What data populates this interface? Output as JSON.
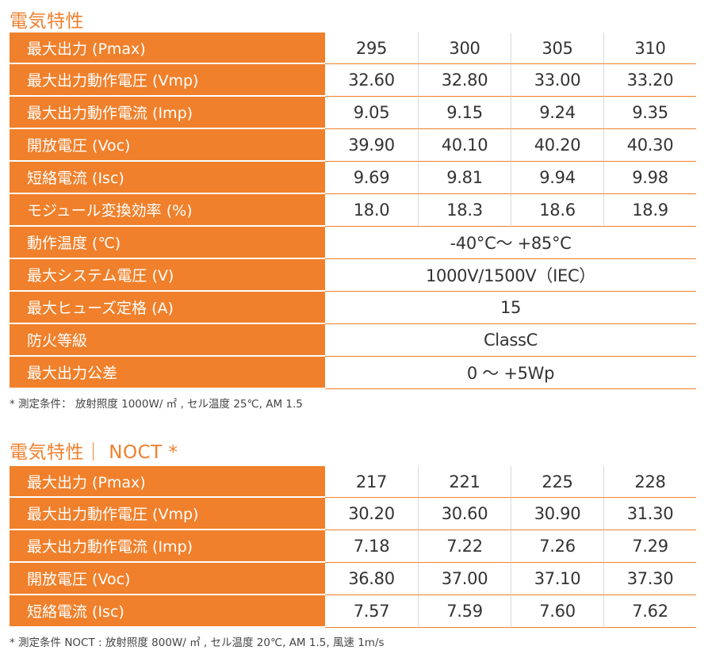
{
  "section1": {
    "title": "電気特性",
    "rows": [
      {
        "label": "最大出力 (Pmax)",
        "values": [
          "295",
          "300",
          "305",
          "310"
        ]
      },
      {
        "label": "最大出力動作電圧 (Vmp)",
        "values": [
          "32.60",
          "32.80",
          "33.00",
          "33.20"
        ]
      },
      {
        "label": "最大出力動作電流 (Imp)",
        "values": [
          "9.05",
          "9.15",
          "9.24",
          "9.35"
        ]
      },
      {
        "label": "開放電圧 (Voc)",
        "values": [
          "39.90",
          "40.10",
          "40.20",
          "40.30"
        ]
      },
      {
        "label": "短絡電流 (Isc)",
        "values": [
          "9.69",
          "9.81",
          "9.94",
          "9.98"
        ]
      },
      {
        "label": "モジュール変換効率 (%)",
        "values": [
          "18.0",
          "18.3",
          "18.6",
          "18.9"
        ]
      }
    ],
    "span_rows": [
      {
        "label": "動作温度 (℃)",
        "value": "-40°C〜 +85°C"
      },
      {
        "label": "最大システム電圧 (V)",
        "value": "1000V/1500V（IEC）"
      },
      {
        "label": "最大ヒューズ定格 (A)",
        "value": "15"
      },
      {
        "label": "防火等級",
        "value": "ClassC"
      },
      {
        "label": "最大出力公差",
        "value": "0 〜 +5Wp"
      }
    ],
    "note": "* 測定条件： 放射照度 1000W/ ㎡ , セル温度 25℃, AM 1.5"
  },
  "section2": {
    "title": "電気特性｜ NOCT *",
    "rows": [
      {
        "label": "最大出力 (Pmax)",
        "values": [
          "217",
          "221",
          "225",
          "228"
        ]
      },
      {
        "label": "最大出力動作電圧 (Vmp)",
        "values": [
          "30.20",
          "30.60",
          "30.90",
          "31.30"
        ]
      },
      {
        "label": "最大出力動作電流 (Imp)",
        "values": [
          "7.18",
          "7.22",
          "7.26",
          "7.29"
        ]
      },
      {
        "label": "開放電圧 (Voc)",
        "values": [
          "36.80",
          "37.00",
          "37.10",
          "37.30"
        ]
      },
      {
        "label": "短絡電流 (Isc)",
        "values": [
          "7.57",
          "7.59",
          "7.60",
          "7.62"
        ]
      }
    ],
    "note": "* 測定条件 NOCT : 放射照度 800W/ ㎡ , セル温度 20℃, AM 1.5, 風速 1m/s"
  },
  "colors": {
    "accent": "#f0802b",
    "title": "#ef7f2c",
    "text": "#333333"
  }
}
